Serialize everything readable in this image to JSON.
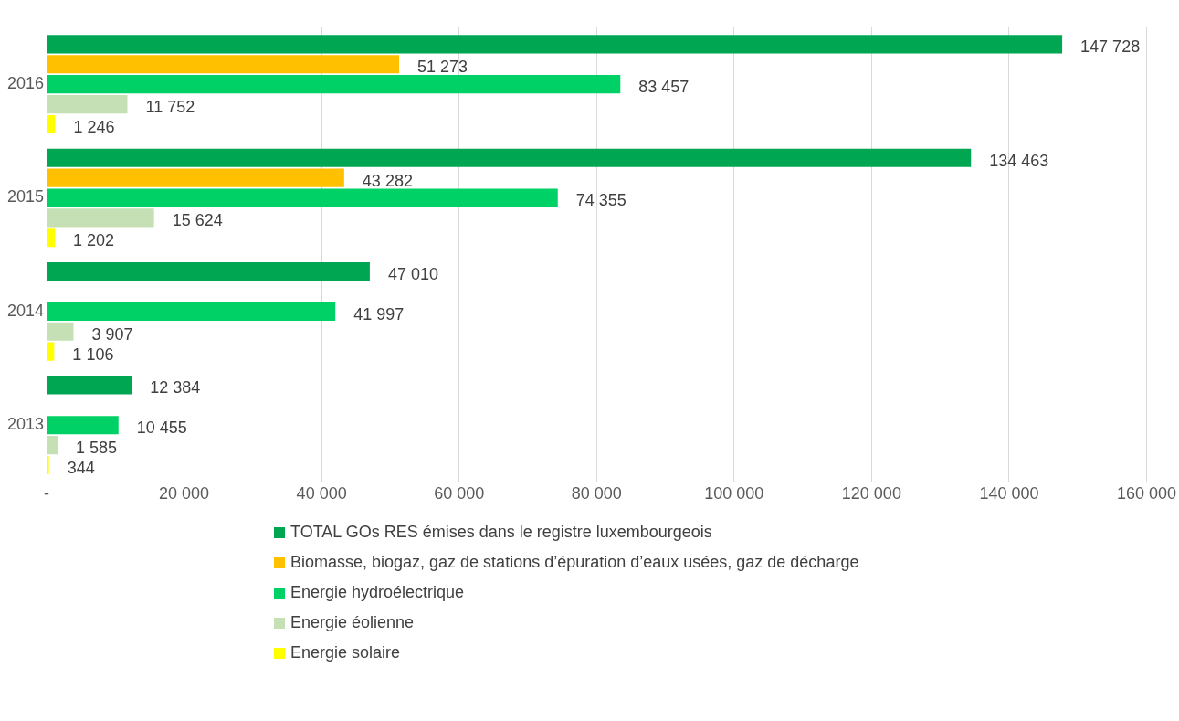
{
  "chart_data": {
    "type": "bar",
    "orientation": "horizontal",
    "categories": [
      "2016",
      "2015",
      "2014",
      "2013"
    ],
    "series": [
      {
        "name": "TOTAL GOs RES émises dans le registre luxembourgeois",
        "color": "#00a651",
        "values": [
          147728,
          134463,
          47010,
          12384
        ],
        "value_labels": [
          "147 728",
          "134 463",
          "47 010",
          "12 384"
        ]
      },
      {
        "name": "Biomasse, biogaz, gaz de stations d’épuration d’eaux usées, gaz de décharge",
        "color": "#ffc000",
        "values": [
          51273,
          43282,
          null,
          null
        ],
        "value_labels": [
          "51 273",
          "43 282",
          null,
          null
        ]
      },
      {
        "name": "Energie hydroélectrique",
        "color": "#00d166",
        "values": [
          83457,
          74355,
          41997,
          10455
        ],
        "value_labels": [
          "83 457",
          "74 355",
          "41 997",
          "10 455"
        ]
      },
      {
        "name": "Energie éolienne",
        "color": "#c5e0b4",
        "values": [
          11752,
          15624,
          3907,
          1585
        ],
        "value_labels": [
          "11 752",
          "15 624",
          "3 907",
          "1 585"
        ]
      },
      {
        "name": "Energie solaire",
        "color": "#ffff00",
        "values": [
          1246,
          1202,
          1106,
          344
        ],
        "value_labels": [
          "1 246",
          "1 202",
          "1 106",
          "344"
        ]
      }
    ],
    "xlim": [
      0,
      160000
    ],
    "xticks": [
      {
        "value": 0,
        "label": "-"
      },
      {
        "value": 20000,
        "label": "20 000"
      },
      {
        "value": 40000,
        "label": "40 000"
      },
      {
        "value": 60000,
        "label": "60 000"
      },
      {
        "value": 80000,
        "label": "80 000"
      },
      {
        "value": 100000,
        "label": "100 000"
      },
      {
        "value": 120000,
        "label": "120 000"
      },
      {
        "value": 140000,
        "label": "140 000"
      },
      {
        "value": 160000,
        "label": "160 000"
      }
    ],
    "grid": "x",
    "legend": "bottom"
  }
}
